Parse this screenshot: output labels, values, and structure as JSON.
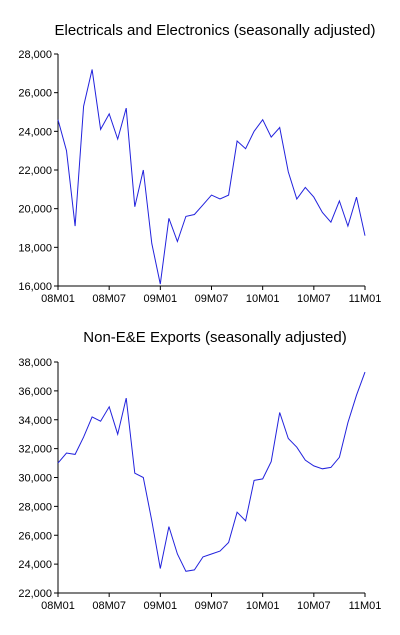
{
  "chart_data": [
    {
      "type": "line",
      "title": "Electricals and Electronics (seasonally adjusted)",
      "xlabel": "",
      "ylabel": "",
      "ylim": [
        16000,
        28000
      ],
      "yticks": [
        "16,000",
        "18,000",
        "20,000",
        "22,000",
        "24,000",
        "26,000",
        "28,000"
      ],
      "xticks": [
        "08M01",
        "08M07",
        "09M01",
        "09M07",
        "10M01",
        "10M07",
        "11M01"
      ],
      "grid": false,
      "line_color": "#2222dd",
      "x": [
        "08M01",
        "08M02",
        "08M03",
        "08M04",
        "08M05",
        "08M06",
        "08M07",
        "08M08",
        "08M09",
        "08M10",
        "08M11",
        "08M12",
        "09M01",
        "09M02",
        "09M03",
        "09M04",
        "09M05",
        "09M06",
        "09M07",
        "09M08",
        "09M09",
        "09M10",
        "09M11",
        "09M12",
        "10M01",
        "10M02",
        "10M03",
        "10M04",
        "10M05",
        "10M06",
        "10M07",
        "10M08",
        "10M09",
        "10M10",
        "10M11",
        "10M12",
        "11M01"
      ],
      "values": [
        24600,
        23000,
        19100,
        25300,
        27200,
        24100,
        24900,
        23600,
        25200,
        20100,
        22000,
        18200,
        16100,
        19500,
        18300,
        19600,
        19700,
        20200,
        20700,
        20500,
        20700,
        23500,
        23100,
        24000,
        24600,
        23700,
        24200,
        21900,
        20500,
        21100,
        20600,
        19800,
        19300,
        20400,
        19100,
        20600,
        18600
      ]
    },
    {
      "type": "line",
      "title": "Non-E&E Exports (seasonally adjusted)",
      "xlabel": "",
      "ylabel": "",
      "ylim": [
        22000,
        38000
      ],
      "yticks": [
        "22,000",
        "24,000",
        "26,000",
        "28,000",
        "30,000",
        "32,000",
        "34,000",
        "36,000",
        "38,000"
      ],
      "xticks": [
        "08M01",
        "08M07",
        "09M01",
        "09M07",
        "10M01",
        "10M07",
        "11M01"
      ],
      "grid": false,
      "line_color": "#2222dd",
      "x": [
        "08M01",
        "08M02",
        "08M03",
        "08M04",
        "08M05",
        "08M06",
        "08M07",
        "08M08",
        "08M09",
        "08M10",
        "08M11",
        "08M12",
        "09M01",
        "09M02",
        "09M03",
        "09M04",
        "09M05",
        "09M06",
        "09M07",
        "09M08",
        "09M09",
        "09M10",
        "09M11",
        "09M12",
        "10M01",
        "10M02",
        "10M03",
        "10M04",
        "10M05",
        "10M06",
        "10M07",
        "10M08",
        "10M09",
        "10M10",
        "10M11",
        "10M12",
        "11M01"
      ],
      "values": [
        31000,
        31700,
        31600,
        32800,
        34200,
        33900,
        34900,
        33000,
        35500,
        30300,
        30000,
        27000,
        23700,
        26600,
        24700,
        23500,
        23600,
        24500,
        24700,
        24900,
        25500,
        27600,
        27000,
        29800,
        29900,
        31100,
        34500,
        32700,
        32100,
        31200,
        30800,
        30600,
        30700,
        31400,
        33800,
        35700,
        37300
      ]
    }
  ]
}
